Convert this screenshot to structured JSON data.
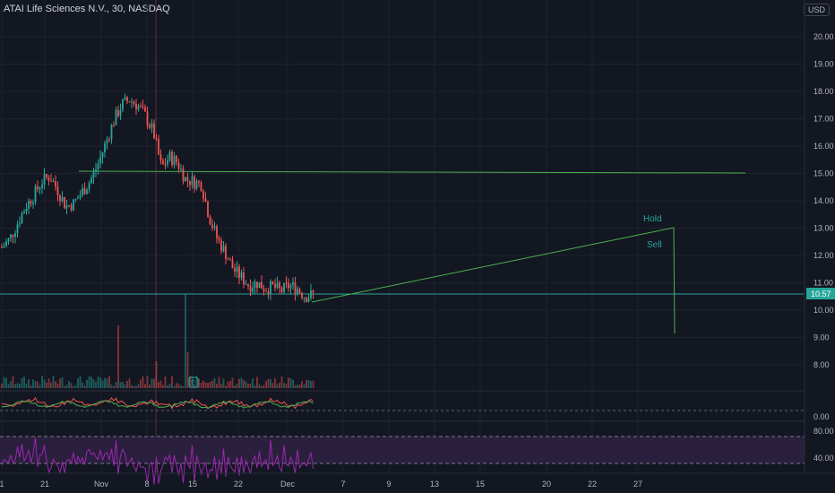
{
  "header": {
    "title": "ATAI Life Sciences N.V., 30, NASDAQ",
    "currency": "USD"
  },
  "price_axis": {
    "ticks": [
      "20.00",
      "19.00",
      "18.00",
      "17.00",
      "16.00",
      "15.00",
      "14.00",
      "13.00",
      "12.00",
      "11.00",
      "10.00",
      "9.00",
      "8.00"
    ],
    "last_price": "10.57"
  },
  "indicator_axis": {
    "ticks": [
      "0.00"
    ]
  },
  "rsi_axis": {
    "ticks": [
      "80.00",
      "40.00"
    ]
  },
  "time_axis": {
    "labels": [
      "1",
      "21",
      "Nov",
      "8",
      "15",
      "22",
      "Dec",
      "7",
      "9",
      "13",
      "15",
      "20",
      "22",
      "27"
    ]
  },
  "drawings": {
    "hold_label": "Hold",
    "sell_label": "Sell",
    "earnings_badge": "E"
  },
  "colors": {
    "background": "#131722",
    "up": "#26a69a",
    "down": "#ef5350",
    "drawing": "#4caf50",
    "rsi": "#9c27b0",
    "rsi_band": "#2a1f3d"
  },
  "chart_data": {
    "type": "candlestick",
    "symbol": "ATAI",
    "interval": "30",
    "exchange": "NASDAQ",
    "price_ylim": [
      7.3,
      21.0
    ],
    "close_series": [
      12.3,
      12.6,
      13.2,
      13.8,
      14.2,
      14.7,
      14.9,
      14.4,
      13.8,
      13.9,
      14.3,
      14.7,
      15.3,
      16.1,
      16.9,
      17.5,
      17.7,
      17.5,
      17.1,
      16.5,
      15.2,
      15.6,
      15.4,
      14.8,
      14.7,
      14.6,
      13.4,
      12.6,
      12.1,
      11.5,
      11.2,
      10.9,
      11.0,
      10.8,
      10.85,
      10.7,
      10.9,
      10.8,
      10.5,
      10.57
    ],
    "levels": [
      15.0,
      10.57
    ],
    "trendline": {
      "from": 10.35,
      "to": 13.0,
      "drop_to": 9.1
    },
    "rsi_levels": [
      80,
      40
    ]
  }
}
